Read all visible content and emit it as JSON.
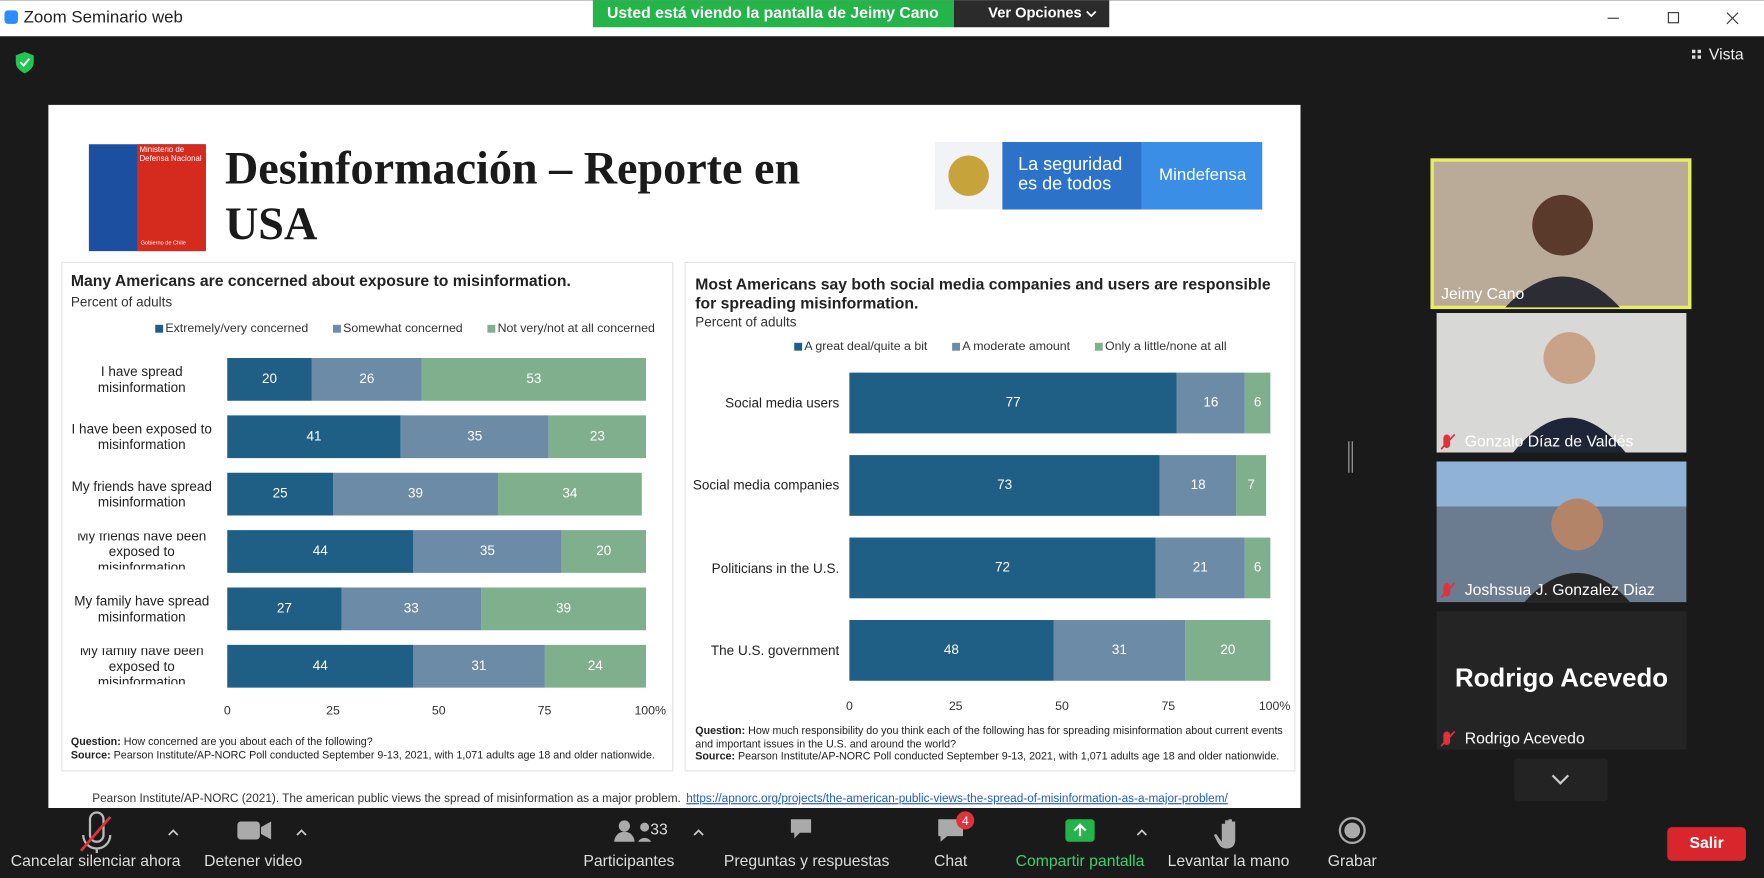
{
  "window": {
    "title": "Zoom Seminario web",
    "banner": "Usted está viendo la pantalla de Jeimy Cano",
    "options": "Ver Opciones",
    "view": "Vista"
  },
  "slide": {
    "title": "Desinformación – Reporte en USA",
    "logo_left": "Ministerio de Defensa Nacional",
    "logo_left_footer": "Gobierno de Chile",
    "logo_right": "La seguridad es de todos",
    "logo_right_brand": "Mindefensa",
    "citation": "Pearson Institute/AP-NORC (2021). The american public views the spread of misinformation  as a major problem.",
    "link": "https://apnorc.org/projects/the-american-public-views-the-spread-of-misinformation-as-a-major-problem/"
  },
  "chart_data": [
    {
      "type": "bar",
      "orientation": "horizontal",
      "stacked": true,
      "title": "Many Americans are concerned about exposure to misinformation.",
      "subtitle": "Percent of adults",
      "categories": [
        "I have spread misinformation",
        "I have been exposed to misinformation",
        "My friends have spread misinformation",
        "My friends have been exposed to misinformation",
        "My family have spread misinformation",
        "My family have been exposed to misinformation"
      ],
      "series": [
        {
          "name": "Extremely/very concerned",
          "color": "#1f5f86",
          "values": [
            20,
            41,
            25,
            44,
            27,
            44
          ]
        },
        {
          "name": "Somewhat concerned",
          "color": "#6c8ba7",
          "values": [
            26,
            35,
            39,
            35,
            33,
            31
          ]
        },
        {
          "name": "Not very/not at all concerned",
          "color": "#7faf8d",
          "values": [
            53,
            23,
            34,
            20,
            39,
            24
          ]
        }
      ],
      "xlim": [
        0,
        100
      ],
      "xticks": [
        0,
        25,
        50,
        75,
        {
          "value": 100,
          "label": "100%"
        }
      ],
      "notes": [
        {
          "label": "Question:",
          "text": "How concerned are you about each of the following?"
        },
        {
          "label": "Source:",
          "text": "Pearson Institute/AP-NORC Poll conducted September 9-13, 2021, with 1,071 adults age 18 and older nationwide."
        }
      ]
    },
    {
      "type": "bar",
      "orientation": "horizontal",
      "stacked": true,
      "title": "Most Americans say both social media companies and users are responsible for spreading misinformation.",
      "subtitle": "Percent of adults",
      "categories": [
        "Social media users",
        "Social media companies",
        "Politicians in the U.S.",
        "The U.S. government"
      ],
      "series": [
        {
          "name": "A great deal/quite a bit",
          "color": "#1f5f86",
          "values": [
            77,
            73,
            72,
            48
          ]
        },
        {
          "name": "A moderate amount",
          "color": "#6c8ba7",
          "values": [
            16,
            18,
            21,
            31
          ]
        },
        {
          "name": "Only a little/none at all",
          "color": "#7faf8d",
          "values": [
            6,
            7,
            6,
            20
          ]
        }
      ],
      "xlim": [
        0,
        100
      ],
      "xticks": [
        0,
        25,
        50,
        75,
        {
          "value": 100,
          "label": "100%"
        }
      ],
      "notes": [
        {
          "label": "Question:",
          "text": "How much responsibility do you think each of the following has for spreading misinformation about current events and important issues in the U.S. and around the world?"
        },
        {
          "label": "Source:",
          "text": "Pearson Institute/AP-NORC Poll conducted September 9-13, 2021, with 1,071 adults age 18 and older nationwide."
        }
      ]
    }
  ],
  "participants": [
    {
      "name": "Jeimy Cano"
    },
    {
      "name": "Gonzalo Díaz de Valdés"
    },
    {
      "name": "Joshssua J. Gonzalez Diaz"
    },
    {
      "name": "Rodrigo Acevedo",
      "display": "Rodrigo Acevedo"
    }
  ],
  "toolbar": {
    "mute": "Cancelar silenciar ahora",
    "video": "Detener video",
    "participants": "Participantes",
    "participants_count": 33,
    "qa": "Preguntas y respuestas",
    "chat": "Chat",
    "chat_badge": 4,
    "share": "Compartir pantalla",
    "hand": "Levantar la mano",
    "record": "Grabar",
    "leave": "Salir"
  }
}
